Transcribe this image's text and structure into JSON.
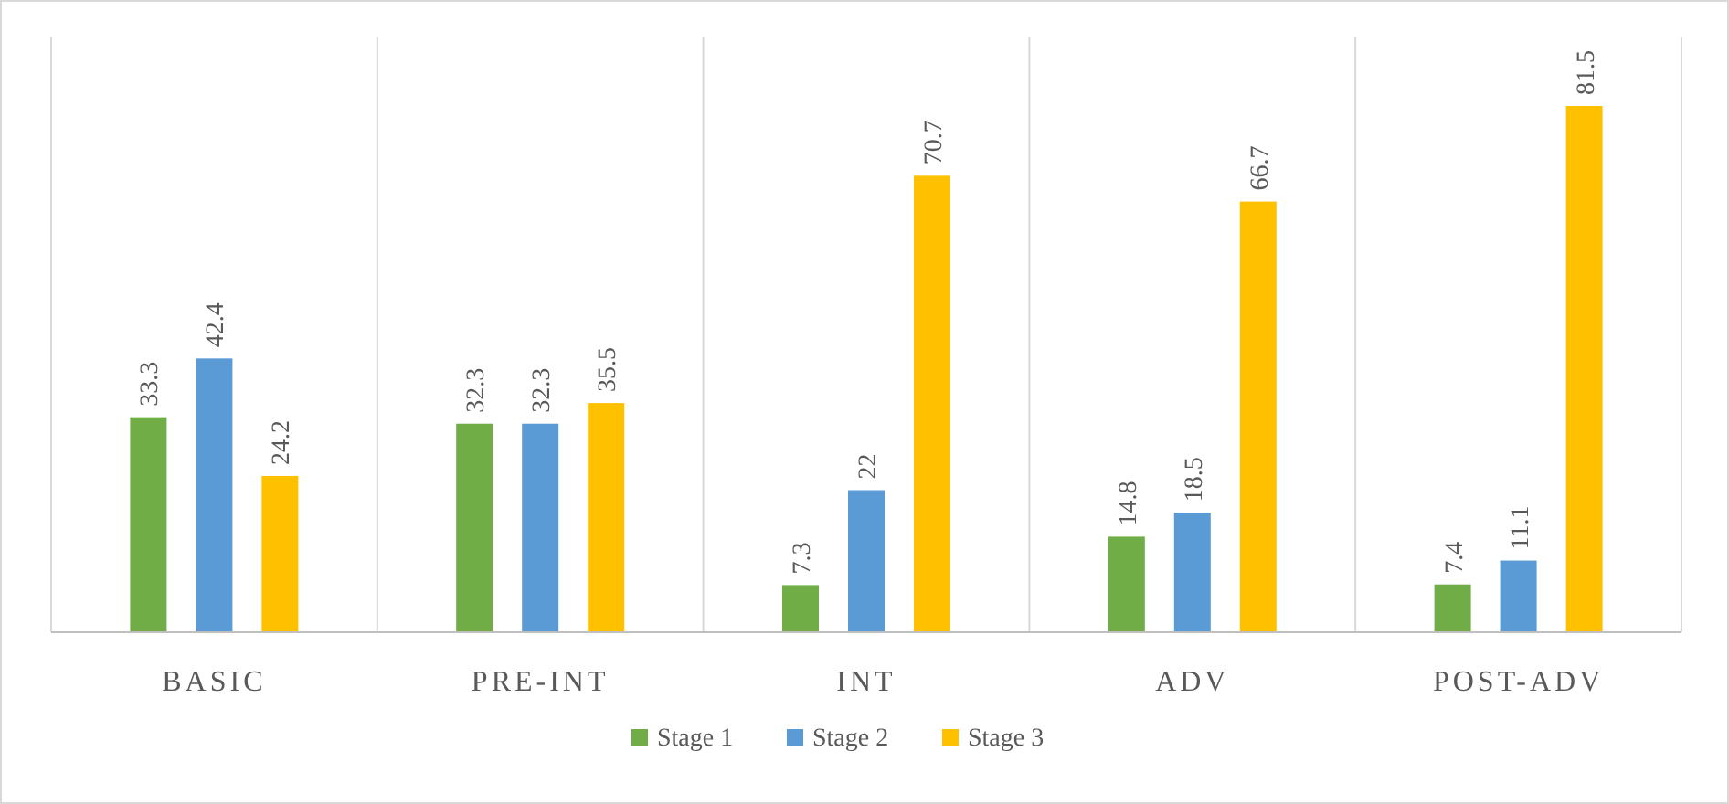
{
  "chart_data": {
    "type": "bar",
    "categories": [
      "BASIC",
      "PRE-INT",
      "INT",
      "ADV",
      "POST-ADV"
    ],
    "series": [
      {
        "name": "Stage 1",
        "color": "#70ad47",
        "values": [
          33.3,
          32.3,
          7.3,
          14.8,
          7.4
        ]
      },
      {
        "name": "Stage 2",
        "color": "#5b9bd5",
        "values": [
          42.4,
          32.3,
          22,
          18.5,
          11.1
        ]
      },
      {
        "name": "Stage 3",
        "color": "#ffc000",
        "values": [
          24.2,
          35.5,
          70.7,
          66.7,
          81.5
        ]
      }
    ],
    "data_labels": true,
    "grid": "x",
    "legend": "bottom"
  }
}
